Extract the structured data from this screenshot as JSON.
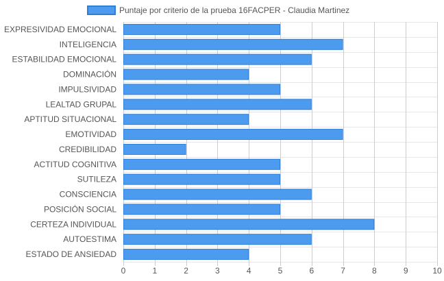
{
  "chart_data": {
    "type": "bar",
    "orientation": "horizontal",
    "categories": [
      "EXPRESIVIDAD EMOCIONAL",
      "INTELIGENCIA",
      "ESTABILIDAD EMOCIONAL",
      "DOMINACIÓN",
      "IMPULSIVIDAD",
      "LEALTAD GRUPAL",
      "APTITUD SITUACIONAL",
      "EMOTIVIDAD",
      "CREDIBILIDAD",
      "ACTITUD COGNITIVA",
      "SUTILEZA",
      "CONSCIENCIA",
      "POSICIÓN SOCIAL",
      "CERTEZA INDIVIDUAL",
      "AUTOESTIMA",
      "ESTADO DE ANSIEDAD"
    ],
    "series": [
      {
        "name": "Puntaje por criterio de la prueba 16FACPER - Claudia Martinez",
        "values": [
          5,
          7,
          6,
          4,
          5,
          6,
          4,
          7,
          2,
          5,
          5,
          6,
          5,
          8,
          6,
          4
        ]
      }
    ],
    "xlim": [
      0,
      10
    ],
    "ticks": [
      "0",
      "1",
      "2",
      "3",
      "4",
      "5",
      "6",
      "7",
      "8",
      "9",
      "10"
    ],
    "grid": true,
    "legend_position": "top",
    "colors": {
      "bar_fill": "#4c9bef",
      "bar_stroke": "#2f7fd8",
      "grid": "#cccccc",
      "grid_minor": "#e6e6e6",
      "text": "#555555"
    }
  }
}
